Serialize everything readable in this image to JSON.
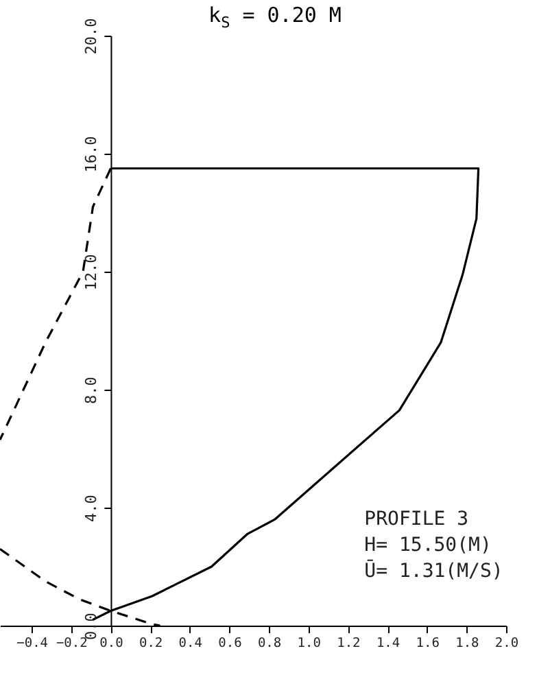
{
  "chart_data": {
    "type": "line",
    "title": "k$_{S}$ = 0.20 M",
    "annotations": [
      "PROFILE 3",
      "H= 15.50(M)",
      "Ū= 1.31(M/S)"
    ],
    "xlim": [
      -0.56,
      2.0
    ],
    "xticks": [
      -0.4,
      -0.2,
      {
        "value": 0,
        "label": "0.0"
      },
      0.2,
      0.4,
      0.6,
      0.8,
      {
        "value": 1,
        "label": "1.0"
      },
      1.2,
      1.4,
      1.6,
      1.8,
      {
        "value": 2,
        "label": "2.0"
      }
    ],
    "ylim": [
      0,
      20
    ],
    "yticks": [
      {
        "value": 0,
        "label": "0.0"
      },
      {
        "value": 4,
        "label": "4.0"
      },
      {
        "value": 8,
        "label": "8.0"
      },
      {
        "value": 12,
        "label": "12.0"
      },
      {
        "value": 16,
        "label": "16.0"
      },
      {
        "value": 20,
        "label": "20.0"
      }
    ],
    "grid": false,
    "series": [
      {
        "color": "#000000",
        "line_style": "solid",
        "x": [
          -0.09,
          0,
          0.21,
          0.51,
          0.69,
          0.83,
          1.46,
          1.67,
          1.78,
          1.85,
          1.86,
          0
        ],
        "values": [
          0.2,
          0.5,
          1.0,
          2.0,
          3.1,
          3.6,
          7.3,
          9.6,
          11.9,
          13.8,
          15.5,
          15.5
        ]
      },
      {
        "color": "#000000",
        "line_style": "dashed",
        "x": [
          0,
          -0.09,
          -0.14,
          -0.33,
          -0.49,
          -0.56,
          null,
          -0.56,
          -0.33,
          -0.16,
          0,
          0.21,
          0.25
        ],
        "values": [
          15.5,
          14.2,
          12.0,
          9.6,
          7.3,
          6.3,
          null,
          2.6,
          1.5,
          0.9,
          0.5,
          0.05,
          0
        ]
      }
    ]
  }
}
